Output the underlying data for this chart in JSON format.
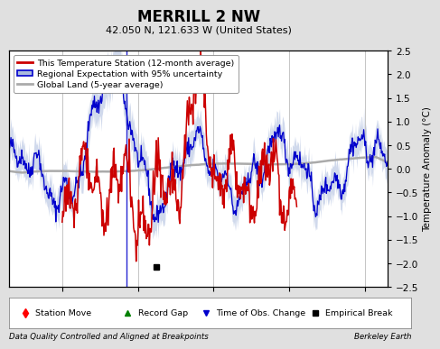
{
  "title": "MERRILL 2 NW",
  "subtitle": "42.050 N, 121.633 W (United States)",
  "ylabel": "Temperature Anomaly (°C)",
  "footer_left": "Data Quality Controlled and Aligned at Breakpoints",
  "footer_right": "Berkeley Earth",
  "xlim": [
    1933,
    1983
  ],
  "ylim": [
    -2.5,
    2.5
  ],
  "xticks": [
    1940,
    1950,
    1960,
    1970,
    1980
  ],
  "yticks": [
    -2.5,
    -2,
    -1.5,
    -1,
    -0.5,
    0,
    0.5,
    1,
    1.5,
    2,
    2.5
  ],
  "bg_color": "#e0e0e0",
  "plot_bg_color": "#ffffff",
  "grid_color": "#bbbbbb",
  "empirical_break_year": 1952.5,
  "obs_change_year": 1948.5,
  "red_line_color": "#cc0000",
  "blue_line_color": "#0000cc",
  "blue_fill_color": "#aabbdd",
  "gray_line_color": "#aaaaaa",
  "seed": 42
}
